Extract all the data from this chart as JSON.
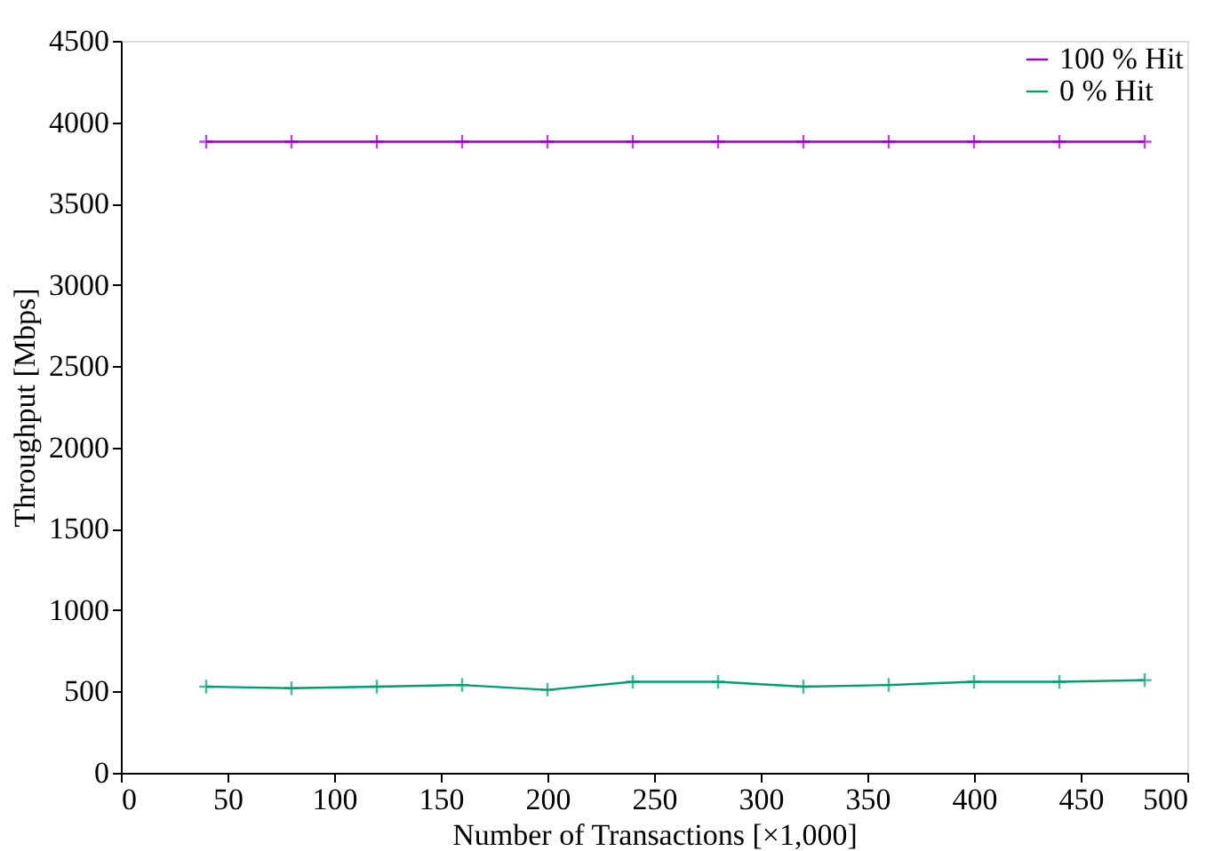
{
  "chart_data": {
    "type": "line",
    "xlabel": "Number of Transactions [×1,000]",
    "ylabel": "Throughput [Mbps]",
    "x": [
      40,
      80,
      120,
      160,
      200,
      240,
      280,
      320,
      360,
      400,
      440,
      480
    ],
    "series": [
      {
        "name": "100 % Hit",
        "color": "#9400d3",
        "values": [
          3880,
          3880,
          3880,
          3880,
          3880,
          3880,
          3880,
          3880,
          3880,
          3880,
          3880,
          3880
        ]
      },
      {
        "name": "0 % Hit",
        "color": "#009e73",
        "values": [
          530,
          520,
          530,
          540,
          510,
          560,
          560,
          530,
          540,
          560,
          560,
          570
        ]
      }
    ],
    "xlim": [
      0,
      500
    ],
    "xticks": [
      0,
      50,
      100,
      150,
      200,
      250,
      300,
      350,
      400,
      450,
      500
    ],
    "ylim": [
      0,
      4500
    ],
    "yticks": [
      0,
      500,
      1000,
      1500,
      2000,
      2500,
      3000,
      3500,
      4000,
      4500
    ],
    "grid": false,
    "legend": "top right",
    "marker": "cross",
    "line_style": "solid"
  }
}
